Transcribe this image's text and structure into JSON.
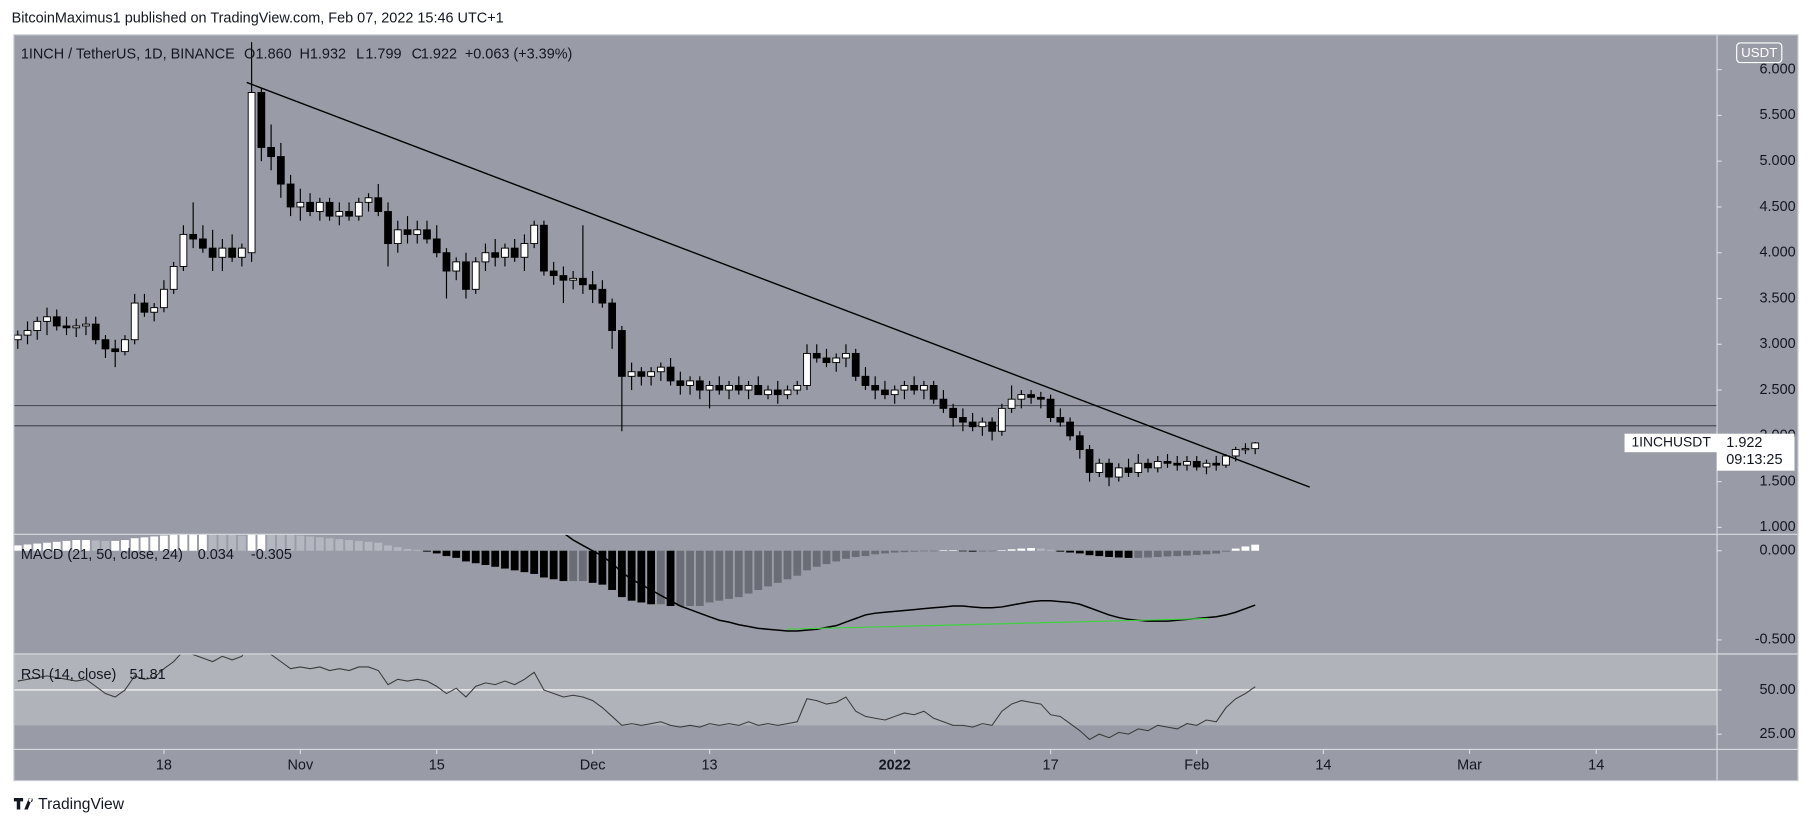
{
  "header": {
    "text": "BitcoinMaximus1 published on TradingView.com, Feb 07, 2022 15:46 UTC+1"
  },
  "footer": {
    "brand": "TradingView"
  },
  "chart_data": [
    {
      "type": "candlestick",
      "title": "1INCH / TetherUS, 1D, BINANCE",
      "ohlc_legend": [
        {
          "label": "O",
          "value": "1.860"
        },
        {
          "label": "H",
          "value": "1.932"
        },
        {
          "label": "L",
          "value": "1.799"
        },
        {
          "label": "C",
          "value": "1.922"
        }
      ],
      "change": "+0.063 (+3.39%)",
      "currency": "USDT",
      "symbol_tag": "1INCHUSDT",
      "last_price": 1.922,
      "countdown": "09:13:25",
      "open": [
        3.05,
        3.1,
        3.15,
        3.25,
        3.3,
        3.2,
        3.18,
        3.2,
        3.22,
        3.05,
        2.95,
        2.92,
        3.05,
        3.45,
        3.35,
        3.4,
        3.6,
        3.85,
        4.2,
        4.15,
        4.05,
        3.95,
        4.05,
        3.95,
        4.0,
        5.75,
        5.15,
        5.05,
        4.75,
        4.5,
        4.55,
        4.45,
        4.55,
        4.4,
        4.45,
        4.4,
        4.55,
        4.6,
        4.45,
        4.1,
        4.25,
        4.2,
        4.25,
        4.15,
        4.0,
        3.8,
        3.9,
        3.6,
        3.9,
        4.0,
        3.95,
        4.05,
        3.95,
        4.1,
        4.3,
        3.8,
        3.75,
        3.7,
        3.72,
        3.65,
        3.6,
        3.45,
        3.15,
        2.65,
        2.7,
        2.65,
        2.7,
        2.75,
        2.6,
        2.55,
        2.6,
        2.5,
        2.55,
        2.5,
        2.55,
        2.5,
        2.55,
        2.45,
        2.5,
        2.45,
        2.5,
        2.55,
        2.9,
        2.85,
        2.8,
        2.85,
        2.9,
        2.65,
        2.55,
        2.5,
        2.45,
        2.5,
        2.55,
        2.5,
        2.55,
        2.4,
        2.3,
        2.2,
        2.15,
        2.1,
        2.15,
        2.05,
        2.3,
        2.4,
        2.45,
        2.42,
        2.4,
        2.2,
        2.15,
        2.0,
        1.85,
        1.6,
        1.7,
        1.55,
        1.65,
        1.6,
        1.7,
        1.65,
        1.72,
        1.7,
        1.68,
        1.72,
        1.66,
        1.7,
        1.68,
        1.78,
        1.85,
        1.86
      ],
      "high": [
        3.15,
        3.25,
        3.3,
        3.4,
        3.38,
        3.3,
        3.28,
        3.3,
        3.3,
        3.1,
        3.05,
        3.1,
        3.55,
        3.55,
        3.45,
        3.7,
        3.9,
        4.3,
        4.55,
        4.3,
        4.25,
        4.15,
        4.2,
        4.1,
        6.3,
        5.8,
        5.4,
        5.2,
        4.85,
        4.7,
        4.65,
        4.6,
        4.6,
        4.55,
        4.55,
        4.6,
        4.65,
        4.75,
        4.55,
        4.35,
        4.4,
        4.35,
        4.35,
        4.3,
        4.05,
        3.95,
        4.0,
        3.95,
        4.1,
        4.15,
        4.1,
        4.15,
        4.2,
        4.35,
        4.35,
        3.9,
        3.85,
        3.8,
        4.3,
        3.8,
        3.7,
        3.5,
        3.2,
        2.8,
        2.75,
        2.75,
        2.8,
        2.85,
        2.7,
        2.65,
        2.65,
        2.6,
        2.65,
        2.6,
        2.65,
        2.6,
        2.65,
        2.55,
        2.6,
        2.55,
        2.6,
        3.0,
        3.0,
        2.95,
        2.9,
        3.0,
        2.95,
        2.75,
        2.65,
        2.6,
        2.55,
        2.6,
        2.65,
        2.6,
        2.6,
        2.5,
        2.35,
        2.3,
        2.25,
        2.2,
        2.2,
        2.35,
        2.55,
        2.5,
        2.5,
        2.48,
        2.45,
        2.3,
        2.2,
        2.05,
        1.9,
        1.75,
        1.75,
        1.7,
        1.75,
        1.8,
        1.75,
        1.78,
        1.8,
        1.78,
        1.78,
        1.78,
        1.74,
        1.78,
        1.8,
        1.88,
        1.92,
        1.932
      ],
      "low": [
        2.95,
        3.0,
        3.05,
        3.1,
        3.15,
        3.1,
        3.08,
        3.1,
        3.0,
        2.85,
        2.75,
        2.88,
        3.0,
        3.3,
        3.25,
        3.35,
        3.55,
        3.8,
        4.05,
        4.0,
        3.8,
        3.8,
        3.9,
        3.85,
        3.9,
        5.0,
        4.9,
        4.6,
        4.4,
        4.35,
        4.4,
        4.35,
        4.35,
        4.3,
        4.35,
        4.35,
        4.45,
        4.4,
        3.85,
        4.0,
        4.1,
        4.1,
        4.1,
        3.95,
        3.5,
        3.7,
        3.5,
        3.55,
        3.8,
        3.85,
        3.85,
        3.9,
        3.8,
        4.05,
        3.75,
        3.65,
        3.45,
        3.6,
        3.55,
        3.45,
        3.4,
        2.95,
        2.05,
        2.5,
        2.55,
        2.55,
        2.6,
        2.55,
        2.45,
        2.45,
        2.4,
        2.3,
        2.45,
        2.4,
        2.45,
        2.4,
        2.45,
        2.4,
        2.35,
        2.4,
        2.45,
        2.5,
        2.8,
        2.75,
        2.7,
        2.75,
        2.6,
        2.5,
        2.4,
        2.4,
        2.35,
        2.4,
        2.45,
        2.4,
        2.35,
        2.25,
        2.1,
        2.05,
        2.05,
        2.0,
        1.95,
        2.0,
        2.25,
        2.3,
        2.35,
        2.3,
        2.15,
        2.1,
        1.95,
        1.75,
        1.5,
        1.55,
        1.45,
        1.5,
        1.55,
        1.55,
        1.6,
        1.6,
        1.65,
        1.62,
        1.62,
        1.62,
        1.58,
        1.62,
        1.65,
        1.72,
        1.8,
        1.799
      ],
      "close": [
        3.1,
        3.15,
        3.25,
        3.3,
        3.2,
        3.18,
        3.2,
        3.22,
        3.05,
        2.95,
        2.92,
        3.05,
        3.45,
        3.35,
        3.4,
        3.6,
        3.85,
        4.2,
        4.15,
        4.05,
        3.95,
        4.05,
        3.95,
        4.05,
        5.75,
        5.15,
        5.05,
        4.75,
        4.5,
        4.55,
        4.45,
        4.55,
        4.4,
        4.45,
        4.4,
        4.55,
        4.6,
        4.45,
        4.1,
        4.25,
        4.2,
        4.25,
        4.15,
        4.0,
        3.8,
        3.9,
        3.6,
        3.9,
        4.0,
        3.95,
        4.05,
        3.95,
        4.1,
        4.3,
        3.8,
        3.75,
        3.7,
        3.72,
        3.65,
        3.6,
        3.45,
        3.15,
        2.65,
        2.7,
        2.65,
        2.7,
        2.75,
        2.6,
        2.55,
        2.6,
        2.5,
        2.55,
        2.5,
        2.55,
        2.5,
        2.55,
        2.45,
        2.5,
        2.45,
        2.5,
        2.55,
        2.9,
        2.85,
        2.8,
        2.85,
        2.9,
        2.65,
        2.55,
        2.5,
        2.45,
        2.5,
        2.55,
        2.5,
        2.55,
        2.4,
        2.3,
        2.2,
        2.15,
        2.1,
        2.15,
        2.05,
        2.3,
        2.4,
        2.45,
        2.42,
        2.4,
        2.2,
        2.15,
        2.0,
        1.85,
        1.6,
        1.7,
        1.55,
        1.65,
        1.6,
        1.7,
        1.65,
        1.72,
        1.7,
        1.68,
        1.72,
        1.66,
        1.7,
        1.68,
        1.78,
        1.85,
        1.86,
        1.922
      ],
      "up_color": "#ffffff",
      "down_color": "#000000",
      "levels": [
        2.33,
        2.11
      ],
      "level_color": "#4a4d55",
      "trendline": {
        "x": [
          23.5,
          132.6
        ],
        "y": [
          5.86,
          1.44
        ],
        "color": "#000000"
      },
      "xlim": [
        -0.4,
        174.4
      ],
      "xticks": [
        {
          "value": 15,
          "label": "18"
        },
        {
          "value": 29,
          "label": "Nov"
        },
        {
          "value": 43,
          "label": "15"
        },
        {
          "value": 59,
          "label": "Dec"
        },
        {
          "value": 71,
          "label": "13"
        },
        {
          "value": 90,
          "label": "2022",
          "bold": true
        },
        {
          "value": 106,
          "label": "17"
        },
        {
          "value": 121,
          "label": "Feb"
        },
        {
          "value": 134,
          "label": "14"
        },
        {
          "value": 149,
          "label": "Mar"
        },
        {
          "value": 162,
          "label": "14"
        }
      ],
      "ylim": [
        0.924,
        6.38
      ],
      "yticks": [
        {
          "value": 1,
          "label": "1.000"
        },
        {
          "value": 1.5,
          "label": "1.500"
        },
        {
          "value": 2,
          "label": "2.000"
        },
        {
          "value": 2.5,
          "label": "2.500"
        },
        {
          "value": 3,
          "label": "3.000"
        },
        {
          "value": 3.5,
          "label": "3.500"
        },
        {
          "value": 4,
          "label": "4.000"
        },
        {
          "value": 4.5,
          "label": "4.500"
        },
        {
          "value": 5,
          "label": "5.000"
        },
        {
          "value": 5.5,
          "label": "5.500"
        },
        {
          "value": 6,
          "label": "6.000"
        }
      ]
    },
    {
      "type": "macd",
      "title": "MACD (21, 50, close, 24)",
      "legend_values": [
        "0.034",
        "-0.305"
      ],
      "histogram": [
        0.03,
        0.035,
        0.04,
        0.045,
        0.05,
        0.055,
        0.06,
        0.06,
        0.058,
        0.055,
        0.055,
        0.06,
        0.07,
        0.075,
        0.08,
        0.085,
        0.09,
        0.1,
        0.11,
        0.11,
        0.105,
        0.1,
        0.09,
        0.085,
        0.11,
        0.115,
        0.11,
        0.1,
        0.09,
        0.085,
        0.08,
        0.075,
        0.07,
        0.065,
        0.06,
        0.055,
        0.05,
        0.045,
        0.03,
        0.02,
        0.01,
        0.005,
        -0.005,
        -0.015,
        -0.03,
        -0.04,
        -0.06,
        -0.07,
        -0.08,
        -0.09,
        -0.1,
        -0.11,
        -0.12,
        -0.13,
        -0.15,
        -0.16,
        -0.17,
        -0.17,
        -0.17,
        -0.18,
        -0.19,
        -0.22,
        -0.26,
        -0.28,
        -0.29,
        -0.3,
        -0.3,
        -0.31,
        -0.31,
        -0.31,
        -0.31,
        -0.29,
        -0.28,
        -0.27,
        -0.26,
        -0.24,
        -0.22,
        -0.2,
        -0.18,
        -0.16,
        -0.14,
        -0.11,
        -0.09,
        -0.075,
        -0.06,
        -0.045,
        -0.035,
        -0.03,
        -0.02,
        -0.015,
        -0.01,
        -0.008,
        -0.005,
        -0.003,
        -0.002,
        0.002,
        0.003,
        -0.003,
        -0.005,
        -0.004,
        -0.003,
        0.003,
        0.008,
        0.012,
        0.015,
        0.012,
        0.005,
        -0.005,
        -0.01,
        -0.015,
        -0.025,
        -0.03,
        -0.035,
        -0.038,
        -0.04,
        -0.04,
        -0.038,
        -0.035,
        -0.032,
        -0.03,
        -0.027,
        -0.024,
        -0.02,
        -0.016,
        -0.005,
        0.012,
        0.024,
        0.034
      ],
      "macd": [
        null,
        null,
        null,
        null,
        null,
        null,
        null,
        null,
        null,
        null,
        null,
        null,
        null,
        null,
        null,
        null,
        null,
        null,
        null,
        null,
        null,
        null,
        null,
        null,
        null,
        null,
        null,
        null,
        null,
        null,
        null,
        null,
        null,
        null,
        null,
        null,
        null,
        null,
        null,
        null,
        null,
        null,
        null,
        null,
        null,
        null,
        null,
        null,
        null,
        null,
        null,
        null,
        null,
        null,
        null,
        null,
        0.1,
        0.06,
        0.03,
        0.0,
        -0.03,
        -0.07,
        -0.12,
        -0.16,
        -0.19,
        -0.22,
        -0.25,
        -0.28,
        -0.31,
        -0.33,
        -0.35,
        -0.37,
        -0.39,
        -0.4,
        -0.415,
        -0.425,
        -0.435,
        -0.44,
        -0.445,
        -0.45,
        -0.45,
        -0.445,
        -0.44,
        -0.43,
        -0.42,
        -0.4,
        -0.38,
        -0.36,
        -0.35,
        -0.345,
        -0.34,
        -0.335,
        -0.33,
        -0.325,
        -0.32,
        -0.315,
        -0.31,
        -0.31,
        -0.315,
        -0.32,
        -0.32,
        -0.315,
        -0.305,
        -0.295,
        -0.285,
        -0.28,
        -0.28,
        -0.285,
        -0.29,
        -0.3,
        -0.32,
        -0.34,
        -0.36,
        -0.375,
        -0.385,
        -0.39,
        -0.395,
        -0.395,
        -0.395,
        -0.39,
        -0.385,
        -0.38,
        -0.375,
        -0.37,
        -0.36,
        -0.345,
        -0.325,
        -0.305
      ],
      "histogram_colors": {
        "rising_positive": "#ffffff",
        "falling_positive": "#b4b7bf",
        "falling_negative": "#000000",
        "rising_negative": "#6a6d75"
      },
      "line_color": "#000000",
      "divergence": {
        "x": [
          78.9,
          122.2
        ],
        "y": [
          -0.44,
          -0.38
        ],
        "color": "#3fd13f"
      },
      "ylim": [
        -0.579,
        0.092
      ],
      "yticks": [
        {
          "value": 0,
          "label": "0.000"
        },
        {
          "value": -0.5,
          "label": "-0.500"
        }
      ]
    },
    {
      "type": "rsi",
      "title": "RSI (14, close)",
      "legend_value": "51.81",
      "values": [
        55,
        56,
        57,
        58,
        57,
        56,
        55,
        56,
        52,
        48,
        46,
        50,
        58,
        56,
        57,
        62,
        66,
        72,
        70,
        68,
        66,
        69,
        67,
        69,
        80,
        72,
        70,
        66,
        62,
        63,
        62,
        63,
        61,
        62,
        61,
        63,
        63,
        61,
        53,
        56,
        55,
        56,
        55,
        52,
        48,
        51,
        46,
        52,
        54,
        53,
        55,
        53,
        56,
        60,
        50,
        48,
        46,
        47,
        46,
        44,
        40,
        35,
        30,
        31,
        30,
        31,
        32,
        30,
        29,
        30,
        29,
        31,
        30,
        31,
        30,
        32,
        30,
        31,
        30,
        31,
        32,
        45,
        44,
        42,
        43,
        46,
        38,
        35,
        34,
        33,
        35,
        37,
        36,
        38,
        34,
        32,
        30,
        30,
        29,
        31,
        30,
        38,
        42,
        44,
        43,
        42,
        36,
        35,
        31,
        27,
        22,
        25,
        23,
        26,
        25,
        28,
        27,
        30,
        29,
        28,
        31,
        30,
        33,
        32,
        40,
        45,
        48,
        51.81
      ],
      "color": "#3a3a3a",
      "band": [
        30,
        70
      ],
      "band_color": "#b1b3ba",
      "midline": 50,
      "ylim": [
        16.4,
        70
      ],
      "yticks": [
        {
          "value": 50,
          "label": "50.00"
        },
        {
          "value": 25,
          "label": "25.00"
        }
      ]
    }
  ]
}
